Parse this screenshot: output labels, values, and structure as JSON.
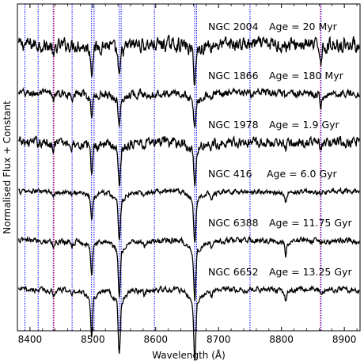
{
  "chart_data": {
    "type": "line",
    "title": "",
    "xlabel": "Wavelength (Å)",
    "ylabel": "Normalised Flux + Constant",
    "xlim": [
      8380,
      8925
    ],
    "x_ticks": [
      8400,
      8500,
      8600,
      8700,
      8800,
      8900
    ],
    "y_ticks_labeled": false,
    "grid": false,
    "spectrum_color": "#000000",
    "marker_lines": [
      {
        "x": 8392,
        "color": "#0000ff",
        "style": "dotted"
      },
      {
        "x": 8413,
        "color": "#0000ff",
        "style": "dotted"
      },
      {
        "x": 8437,
        "color": "#0000ff",
        "style": "dotted"
      },
      {
        "x": 8438,
        "color": "#ff0000",
        "style": "dotted"
      },
      {
        "x": 8467,
        "color": "#0000ff",
        "style": "dotted"
      },
      {
        "x": 8498,
        "color": "#0000ff",
        "style": "dotted"
      },
      {
        "x": 8502,
        "color": "#0000ff",
        "style": "dotted"
      },
      {
        "x": 8542,
        "color": "#0000ff",
        "style": "dotted"
      },
      {
        "x": 8545,
        "color": "#0000ff",
        "style": "dotted"
      },
      {
        "x": 8598,
        "color": "#0000ff",
        "style": "dotted"
      },
      {
        "x": 8662,
        "color": "#0000ff",
        "style": "dotted"
      },
      {
        "x": 8665,
        "color": "#0000ff",
        "style": "dotted"
      },
      {
        "x": 8750,
        "color": "#0000ff",
        "style": "dotted"
      },
      {
        "x": 8862,
        "color": "#ff0000",
        "style": "dotted"
      },
      {
        "x": 8863,
        "color": "#0000ff",
        "style": "dotted"
      }
    ],
    "series": [
      {
        "name": "NGC 2004",
        "age": "Age = 20 Myr",
        "offset": 5.0
      },
      {
        "name": "NGC 1866",
        "age": "Age = 180 Myr",
        "offset": 4.0
      },
      {
        "name": "NGC 1978",
        "age": "Age = 1.9 Gyr",
        "offset": 3.0
      },
      {
        "name": "NGC 416",
        "age": "Age = 6.0 Gyr",
        "offset": 2.0
      },
      {
        "name": "NGC 6388",
        "age": "Age = 11.75 Gyr",
        "offset": 1.0
      },
      {
        "name": "NGC 6652",
        "age": "Age = 13.25 Gyr",
        "offset": 0.0
      }
    ],
    "absorption_lines": [
      {
        "x": 8498.0,
        "depth": [
          0.45,
          0.35,
          0.45,
          0.45,
          0.55,
          0.75
        ]
      },
      {
        "x": 8542.1,
        "depth": [
          0.6,
          0.55,
          0.65,
          0.8,
          0.9,
          1.05
        ]
      },
      {
        "x": 8662.1,
        "depth": [
          0.6,
          0.6,
          0.7,
          0.85,
          0.95,
          1.15
        ]
      },
      {
        "x": 8862.8,
        "depth": [
          0.25,
          0.2,
          0.1,
          0.05,
          0.05,
          0.05
        ]
      },
      {
        "x": 8437.6,
        "depth": [
          0.25,
          0.1,
          0.08,
          0.05,
          0.1,
          0.1
        ]
      },
      {
        "x": 8806.8,
        "depth": [
          0.05,
          0.08,
          0.12,
          0.15,
          0.25,
          0.2
        ]
      },
      {
        "x": 8688.6,
        "depth": [
          0.03,
          0.05,
          0.1,
          0.1,
          0.12,
          0.12
        ]
      },
      {
        "x": 8582.0,
        "depth": [
          0.03,
          0.05,
          0.08,
          0.1,
          0.12,
          0.12
        ]
      },
      {
        "x": 8467.3,
        "depth": [
          0.03,
          0.05,
          0.08,
          0.08,
          0.1,
          0.1
        ]
      }
    ]
  }
}
